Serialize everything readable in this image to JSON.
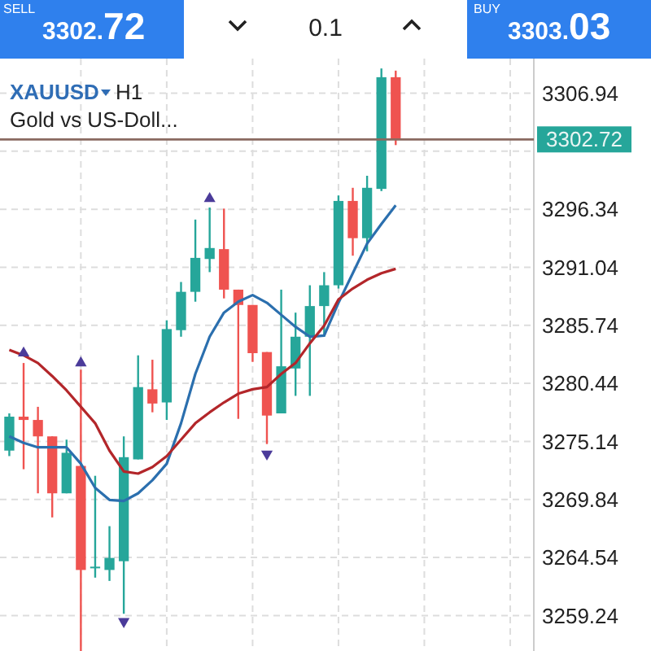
{
  "chart_data": {
    "type": "candlestick",
    "title": "XAUUSD",
    "subtitle": "Gold vs US-Doll...",
    "annotations": [
      "H1",
      "SELL",
      "3302.72",
      "0.1",
      "BUY",
      "3303.03"
    ],
    "categories": [
      null,
      null,
      null,
      null,
      null,
      null,
      null,
      null,
      null,
      null,
      null,
      null,
      null,
      null,
      null,
      null,
      null,
      null,
      null,
      null,
      null,
      null,
      null,
      null,
      null,
      null,
      null,
      null,
      null,
      null,
      null,
      null,
      null,
      null,
      null,
      null,
      null
    ],
    "ohlc": [
      [
        3274.3,
        3277.7,
        3273.8,
        3277.4
      ],
      [
        3277.4,
        3282.3,
        3272.6,
        3277.1
      ],
      [
        3277.1,
        3278.3,
        3270.4,
        3275.6
      ],
      [
        3275.6,
        3275.6,
        3268.2,
        3270.4
      ],
      [
        3270.4,
        3275.3,
        3270.4,
        3274.1
      ],
      [
        3272.9,
        3281.7,
        3256.0,
        3263.4
      ],
      [
        3263.6,
        3272.0,
        3262.7,
        3263.7
      ],
      [
        3263.4,
        3267.4,
        3262.4,
        3264.5
      ],
      [
        3264.2,
        3275.6,
        3259.4,
        3273.7
      ],
      [
        3273.5,
        3283.0,
        3273.5,
        3280.1
      ],
      [
        3279.9,
        3282.6,
        3277.8,
        3278.6
      ],
      [
        3278.7,
        3286.2,
        3277.1,
        3285.4
      ],
      [
        3285.3,
        3289.7,
        3284.7,
        3288.8
      ],
      [
        3288.8,
        3295.4,
        3287.9,
        3291.9
      ],
      [
        3291.8,
        3296.5,
        3290.6,
        3292.8
      ],
      [
        3292.7,
        3296.4,
        3288.2,
        3289.0
      ],
      [
        3289.0,
        3289.0,
        3277.2,
        3287.6
      ],
      [
        3287.6,
        3287.6,
        3282.4,
        3283.2
      ],
      [
        3283.3,
        3283.3,
        3274.9,
        3277.5
      ],
      [
        3277.7,
        3289.0,
        3277.7,
        3282.0
      ],
      [
        3281.8,
        3286.9,
        3279.3,
        3284.7
      ],
      [
        3284.7,
        3289.4,
        3279.3,
        3287.5
      ],
      [
        3287.5,
        3290.6,
        3284.7,
        3289.4
      ],
      [
        3289.4,
        3297.6,
        3289.1,
        3297.1
      ],
      [
        3297.1,
        3298.3,
        3292.1,
        3293.7
      ],
      [
        3293.7,
        3299.4,
        3292.5,
        3298.3
      ],
      [
        3298.2,
        3309.2,
        3298.0,
        3308.4
      ],
      [
        3308.4,
        3309.0,
        3302.2,
        3302.7
      ],
      null,
      null,
      null,
      null,
      null,
      null,
      null,
      null,
      null
    ],
    "colors": [
      "#26a69a",
      "#ef5350",
      "#ef5350",
      "#ef5350",
      "#26a69a",
      "#ef5350",
      "#26a69a",
      "#26a69a",
      "#26a69a",
      "#26a69a",
      "#ef5350",
      "#26a69a",
      "#26a69a",
      "#26a69a",
      "#26a69a",
      "#ef5350",
      "#ef5350",
      "#ef5350",
      "#ef5350",
      "#26a69a",
      "#26a69a",
      "#26a69a",
      "#26a69a",
      "#26a69a",
      "#ef5350",
      "#26a69a",
      "#26a69a",
      "#ef5350",
      null,
      null,
      null,
      null,
      null,
      null,
      null,
      null,
      null
    ],
    "series": [
      {
        "type": "line",
        "color": "#2b6fae",
        "values": [
          3275.6,
          3275.0,
          3274.6,
          3274.6,
          3274.6,
          3273.1,
          3270.9,
          3269.8,
          3269.7,
          3270.4,
          3271.6,
          3273.1,
          3276.8,
          3281.3,
          3284.7,
          3286.9,
          3287.9,
          3288.5,
          3287.8,
          3286.7,
          3285.6,
          3284.7,
          3284.8,
          3287.8,
          3290.5,
          3293.2,
          3295.0,
          3296.7,
          null,
          null,
          null,
          null,
          null,
          null,
          null,
          null,
          null
        ]
      },
      {
        "type": "line",
        "color": "#b3262a",
        "values": [
          3283.5,
          3283.0,
          3282.3,
          3281.1,
          3279.8,
          3278.3,
          3276.8,
          3274.3,
          3272.4,
          3272.2,
          3272.8,
          3273.8,
          3275.3,
          3276.8,
          3277.8,
          3278.7,
          3279.5,
          3279.9,
          3280.1,
          3281.3,
          3282.3,
          3284.1,
          3285.7,
          3288.1,
          3289.1,
          3289.9,
          3290.5,
          3290.9,
          null,
          null,
          null,
          null,
          null,
          null,
          null,
          null,
          null
        ]
      },
      {
        "type": "scatter",
        "color": "#4b3b9a",
        "marker": "triangle",
        "values": [
          null,
          3283.2,
          null,
          null,
          null,
          3282.3,
          null,
          null,
          null,
          null,
          null,
          null,
          null,
          null,
          3297.3,
          null,
          null,
          null,
          null,
          null,
          null,
          null,
          null,
          null,
          null,
          null,
          null,
          null,
          null,
          null,
          null,
          null,
          null,
          null,
          null,
          null,
          null
        ]
      },
      {
        "type": "scatter",
        "color": "#4b3b9a",
        "marker": "triangle-down",
        "values": [
          null,
          null,
          null,
          null,
          null,
          null,
          null,
          null,
          3258.7,
          null,
          null,
          null,
          null,
          null,
          null,
          null,
          null,
          null,
          3274.0,
          null,
          null,
          null,
          null,
          null,
          null,
          null,
          null,
          null,
          null,
          null,
          null,
          null,
          null,
          null,
          null,
          null,
          null
        ]
      }
    ],
    "ylim": [
      3256.0,
      3310.1
    ],
    "yticks": [
      3306.94,
      {
        "value": 3301.64,
        "label": null
      },
      3296.34,
      3291.04,
      3285.74,
      3280.44,
      3275.14,
      3269.84,
      3264.54,
      3259.24
    ],
    "ref_lines": [
      {
        "axis": "y",
        "value": 3302.72,
        "label": "3302.72",
        "color": "#8a6a60"
      }
    ],
    "grid": true,
    "tick_labels": "y"
  }
}
